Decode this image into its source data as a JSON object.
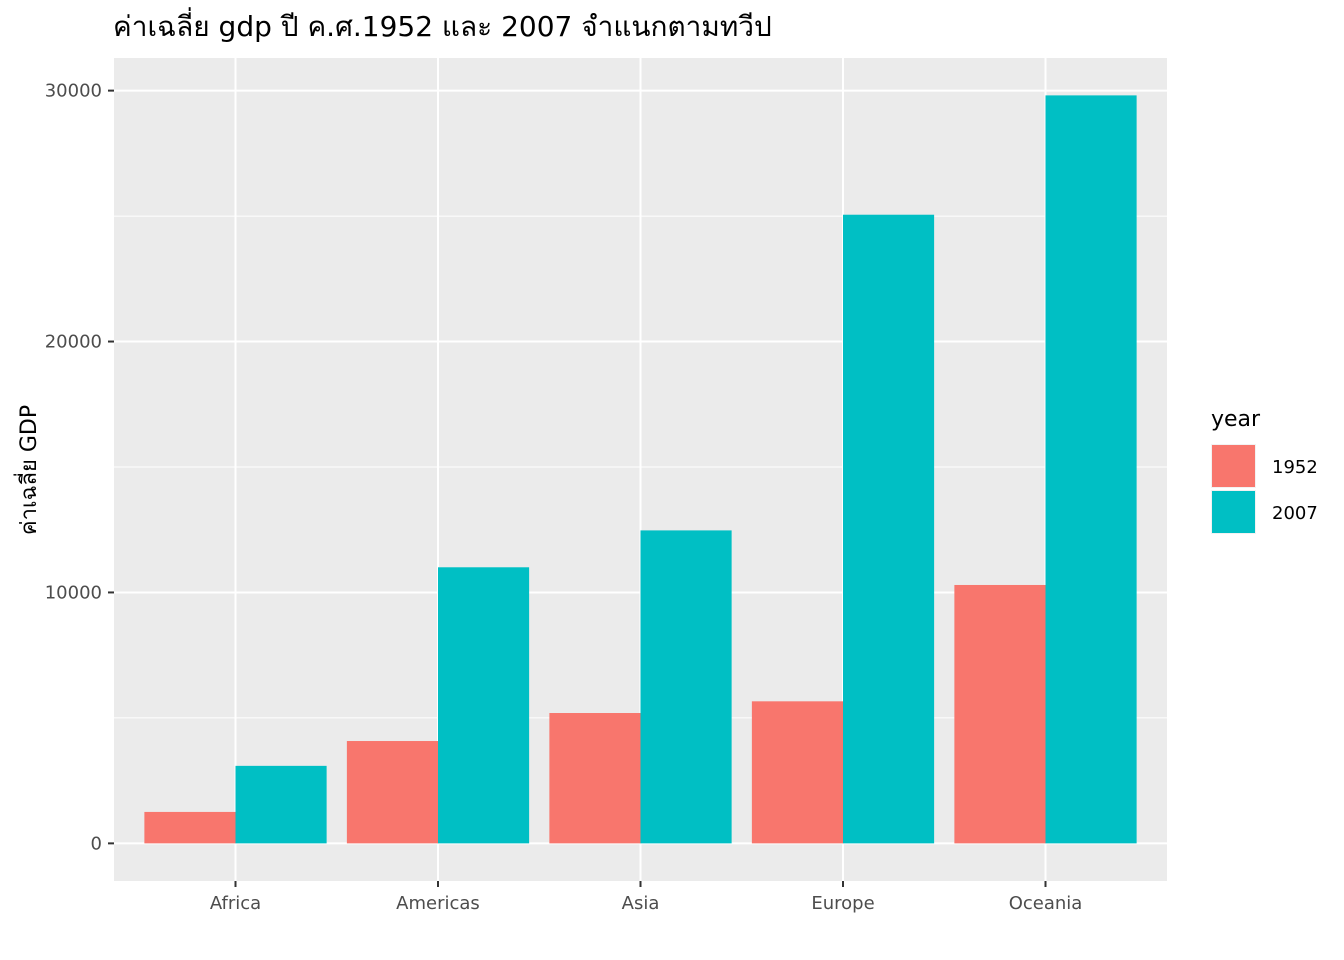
{
  "chart_data": {
    "type": "bar",
    "title": "ค่าเฉลี่ย gdp ปี ค.ศ.1952 และ 2007 จำแนกตามทวีป",
    "xlabel": "",
    "ylabel": "ค่าเฉลี่ย GDP",
    "categories": [
      "Africa",
      "Americas",
      "Asia",
      "Europe",
      "Oceania"
    ],
    "series": [
      {
        "name": "1952",
        "color": "#F8766D",
        "values": [
          1253,
          4079,
          5195,
          5661,
          10298
        ]
      },
      {
        "name": "2007",
        "color": "#00BFC4",
        "values": [
          3089,
          11003,
          12473,
          25054,
          29810
        ]
      }
    ],
    "ylim": [
      -1500,
      31300
    ],
    "yticks": [
      0,
      10000,
      20000,
      30000
    ],
    "ytick_labels": [
      "0",
      "10000",
      "20000",
      "30000"
    ],
    "grid": true,
    "legend": {
      "title": "year",
      "position": "right"
    }
  }
}
